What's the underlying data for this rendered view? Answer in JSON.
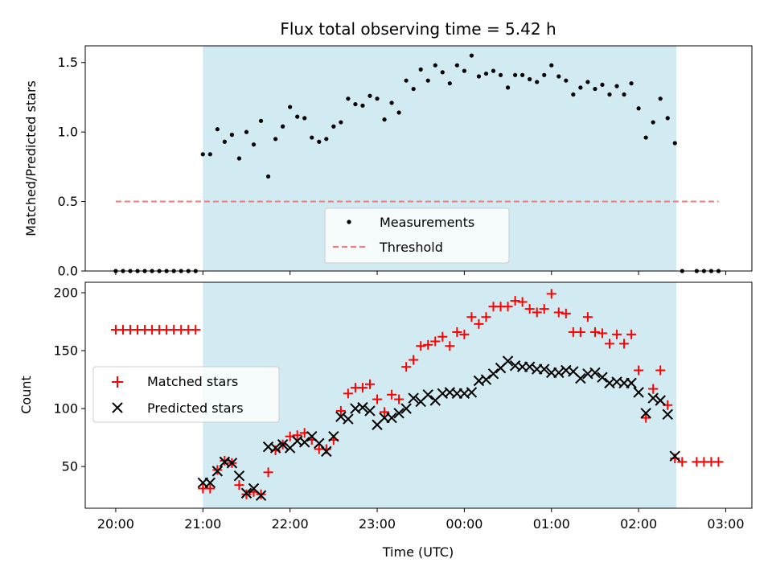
{
  "title": "Flux total observing time = 5.42 h",
  "colors": {
    "shade": "#add8e6",
    "threshold": "#f08080",
    "matched": "#ff0000",
    "predicted": "#000000",
    "measurement": "#000000"
  },
  "chart_data": [
    {
      "type": "scatter",
      "title": "Flux total observing time = 5.42 h",
      "xlabel": "",
      "ylabel": "Matched/Predicted stars",
      "ylim": [
        0,
        1.62
      ],
      "yticks": [
        0.0,
        0.5,
        1.0,
        1.5
      ],
      "ytick_labels": [
        "0.0",
        "0.5",
        "1.0",
        "1.5"
      ],
      "x_unit": "hours since 20:00 UTC",
      "xlim": [
        -0.35,
        7.3
      ],
      "shaded_interval": [
        "21:00",
        "02:26"
      ],
      "legend": {
        "placement": "lower-center",
        "entries": [
          "Measurements",
          "Threshold"
        ]
      },
      "threshold": {
        "name": "Threshold",
        "value": 0.5,
        "x_start": "20:00",
        "x_end": "02:55"
      },
      "series": [
        {
          "name": "Measurements",
          "x": [
            "20:00",
            "20:05",
            "20:10",
            "20:15",
            "20:20",
            "20:25",
            "20:30",
            "20:35",
            "20:40",
            "20:45",
            "20:50",
            "20:55",
            "21:00",
            "21:05",
            "21:10",
            "21:15",
            "21:20",
            "21:25",
            "21:30",
            "21:35",
            "21:40",
            "21:45",
            "21:50",
            "21:55",
            "22:00",
            "22:05",
            "22:10",
            "22:15",
            "22:20",
            "22:25",
            "22:30",
            "22:35",
            "22:40",
            "22:45",
            "22:50",
            "22:55",
            "23:00",
            "23:05",
            "23:10",
            "23:15",
            "23:20",
            "23:25",
            "23:30",
            "23:35",
            "23:40",
            "23:45",
            "23:50",
            "23:55",
            "00:00",
            "00:05",
            "00:10",
            "00:15",
            "00:20",
            "00:25",
            "00:30",
            "00:35",
            "00:40",
            "00:45",
            "00:50",
            "00:55",
            "01:00",
            "01:05",
            "01:10",
            "01:15",
            "01:20",
            "01:25",
            "01:30",
            "01:35",
            "01:40",
            "01:45",
            "01:50",
            "01:55",
            "02:00",
            "02:05",
            "02:10",
            "02:15",
            "02:20",
            "02:25",
            "02:30",
            "02:40",
            "02:45",
            "02:50",
            "02:55"
          ],
          "y": [
            0,
            0,
            0,
            0,
            0,
            0,
            0,
            0,
            0,
            0,
            0,
            0,
            0.84,
            0.84,
            1.02,
            0.93,
            0.98,
            0.81,
            1.0,
            0.91,
            1.08,
            0.68,
            0.95,
            1.04,
            1.18,
            1.11,
            1.1,
            0.96,
            0.93,
            0.95,
            1.04,
            1.07,
            1.24,
            1.2,
            1.19,
            1.26,
            1.24,
            1.09,
            1.21,
            1.14,
            1.37,
            1.31,
            1.45,
            1.37,
            1.48,
            1.43,
            1.35,
            1.48,
            1.44,
            1.55,
            1.4,
            1.42,
            1.44,
            1.41,
            1.32,
            1.41,
            1.41,
            1.38,
            1.36,
            1.41,
            1.48,
            1.4,
            1.37,
            1.27,
            1.32,
            1.36,
            1.31,
            1.34,
            1.27,
            1.33,
            1.27,
            1.35,
            1.17,
            0.96,
            1.07,
            1.24,
            1.1,
            0.92,
            0,
            0,
            0,
            0,
            0
          ]
        }
      ]
    },
    {
      "type": "scatter",
      "title": "",
      "xlabel": "Time (UTC)",
      "ylabel": "Count",
      "ylim": [
        14,
        209
      ],
      "yticks": [
        50,
        100,
        150,
        200
      ],
      "ytick_labels": [
        "50",
        "100",
        "150",
        "200"
      ],
      "xticks": [
        "20:00",
        "21:00",
        "22:00",
        "23:00",
        "00:00",
        "01:00",
        "02:00",
        "03:00"
      ],
      "x_unit": "hours since 20:00 UTC",
      "xlim": [
        -0.35,
        7.3
      ],
      "shaded_interval": [
        "21:00",
        "02:26"
      ],
      "legend": {
        "placement": "center-left",
        "entries": [
          "Matched stars",
          "Predicted stars"
        ]
      },
      "series": [
        {
          "name": "Matched stars",
          "marker": "+",
          "x": [
            "20:00",
            "20:05",
            "20:10",
            "20:15",
            "20:20",
            "20:25",
            "20:30",
            "20:35",
            "20:40",
            "20:45",
            "20:50",
            "20:55",
            "21:00",
            "21:05",
            "21:10",
            "21:15",
            "21:20",
            "21:25",
            "21:30",
            "21:35",
            "21:40",
            "21:45",
            "21:50",
            "21:55",
            "22:00",
            "22:05",
            "22:10",
            "22:15",
            "22:20",
            "22:25",
            "22:30",
            "22:35",
            "22:40",
            "22:45",
            "22:50",
            "22:55",
            "23:00",
            "23:05",
            "23:10",
            "23:15",
            "23:20",
            "23:25",
            "23:30",
            "23:35",
            "23:40",
            "23:45",
            "23:50",
            "23:55",
            "00:00",
            "00:05",
            "00:10",
            "00:15",
            "00:20",
            "00:25",
            "00:30",
            "00:35",
            "00:40",
            "00:45",
            "00:50",
            "00:55",
            "01:00",
            "01:05",
            "01:10",
            "01:15",
            "01:20",
            "01:25",
            "01:30",
            "01:35",
            "01:40",
            "01:45",
            "01:50",
            "01:55",
            "02:00",
            "02:05",
            "02:10",
            "02:15",
            "02:20",
            "02:25",
            "02:30",
            "02:40",
            "02:45",
            "02:50",
            "02:55"
          ],
          "y": [
            168,
            168,
            168,
            168,
            168,
            168,
            168,
            168,
            168,
            168,
            168,
            168,
            31,
            31,
            47,
            55,
            53,
            34,
            26,
            28,
            26,
            45,
            64,
            69,
            76,
            77,
            79,
            73,
            65,
            65,
            73,
            98,
            113,
            118,
            118,
            121,
            108,
            97,
            112,
            108,
            136,
            142,
            154,
            155,
            158,
            162,
            154,
            166,
            164,
            179,
            173,
            179,
            188,
            188,
            188,
            193,
            192,
            186,
            183,
            186,
            199,
            183,
            182,
            166,
            166,
            179,
            166,
            165,
            156,
            164,
            156,
            164,
            133,
            92,
            117,
            133,
            103,
            57,
            54,
            54,
            54,
            54,
            54
          ]
        },
        {
          "name": "Predicted stars",
          "marker": "x",
          "x": [
            "21:00",
            "21:05",
            "21:10",
            "21:15",
            "21:20",
            "21:25",
            "21:30",
            "21:35",
            "21:40",
            "21:45",
            "21:50",
            "21:55",
            "22:00",
            "22:05",
            "22:10",
            "22:15",
            "22:20",
            "22:25",
            "22:30",
            "22:35",
            "22:40",
            "22:45",
            "22:50",
            "22:55",
            "23:00",
            "23:05",
            "23:10",
            "23:15",
            "23:20",
            "23:25",
            "23:30",
            "23:35",
            "23:40",
            "23:45",
            "23:50",
            "23:55",
            "00:00",
            "00:05",
            "00:10",
            "00:15",
            "00:20",
            "00:25",
            "00:30",
            "00:35",
            "00:40",
            "00:45",
            "00:50",
            "00:55",
            "01:00",
            "01:05",
            "01:10",
            "01:15",
            "01:20",
            "01:25",
            "01:30",
            "01:35",
            "01:40",
            "01:45",
            "01:50",
            "01:55",
            "02:00",
            "02:05",
            "02:10",
            "02:15",
            "02:20",
            "02:25"
          ],
          "y": [
            36,
            36,
            46,
            54,
            53,
            42,
            27,
            31,
            25,
            67,
            66,
            69,
            66,
            72,
            71,
            76,
            70,
            63,
            76,
            93,
            91,
            100,
            101,
            98,
            86,
            92,
            92,
            96,
            100,
            109,
            106,
            112,
            107,
            113,
            114,
            113,
            113,
            114,
            124,
            125,
            130,
            135,
            141,
            137,
            136,
            136,
            134,
            134,
            131,
            131,
            133,
            132,
            126,
            130,
            131,
            127,
            122,
            123,
            122,
            122,
            114,
            96,
            109,
            107,
            95,
            59
          ]
        }
      ]
    }
  ]
}
